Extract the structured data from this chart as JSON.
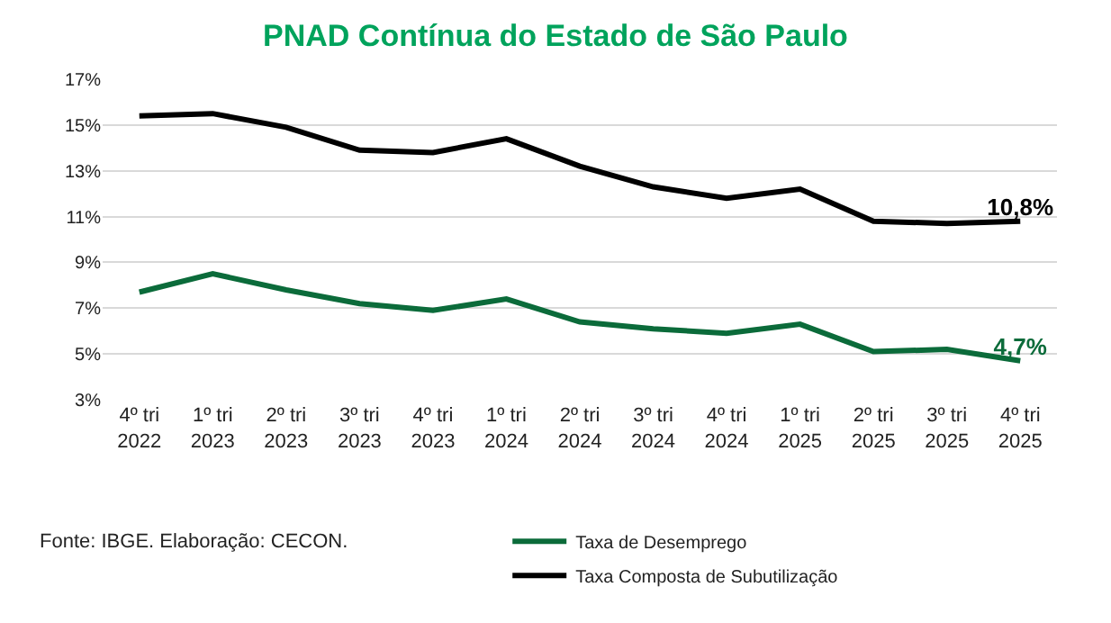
{
  "chart_data": {
    "type": "line",
    "title": "PNAD Contínua do Estado de São Paulo",
    "categories": [
      "4º tri\n2022",
      "1º tri\n2023",
      "2º tri\n2023",
      "3º tri\n2023",
      "4º tri\n2023",
      "1º tri\n2024",
      "2º tri\n2024",
      "3º tri\n2024",
      "4º tri\n2024",
      "1º tri\n2025",
      "2º tri\n2025",
      "3º tri\n2025",
      "4º tri\n2025"
    ],
    "series": [
      {
        "name": "Taxa de Desemprego",
        "color": "#0b6b3a",
        "values": [
          7.7,
          8.5,
          7.8,
          7.2,
          6.9,
          7.4,
          6.4,
          6.1,
          5.9,
          6.3,
          5.1,
          5.2,
          4.7
        ],
        "value_labels": [
          null,
          null,
          null,
          null,
          null,
          null,
          null,
          null,
          null,
          null,
          null,
          null,
          "4,7%"
        ]
      },
      {
        "name": "Taxa Composta de Subutilização",
        "color": "#000000",
        "values": [
          15.4,
          15.5,
          14.9,
          13.9,
          13.8,
          14.4,
          13.2,
          12.3,
          11.8,
          12.2,
          10.8,
          10.7,
          10.8
        ],
        "value_labels": [
          null,
          null,
          null,
          null,
          null,
          null,
          null,
          null,
          null,
          null,
          null,
          null,
          "10,8%"
        ]
      }
    ],
    "ylim": [
      3,
      17
    ],
    "yticks": [
      {
        "value": 3,
        "label": "3%"
      },
      {
        "value": 5,
        "label": "5%"
      },
      {
        "value": 7,
        "label": "7%"
      },
      {
        "value": 9,
        "label": "9%"
      },
      {
        "value": 11,
        "label": "11%"
      },
      {
        "value": 13,
        "label": "13%"
      },
      {
        "value": 15,
        "label": "15%"
      },
      {
        "value": 17,
        "label": "17%"
      }
    ],
    "grid": "y",
    "legend": "bottom",
    "marker": "none",
    "line_style": "solid",
    "annotations": [
      "Fonte: IBGE. Elaboração: CECON."
    ]
  }
}
